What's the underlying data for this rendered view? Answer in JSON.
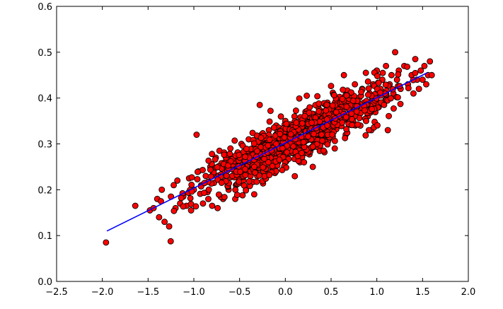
{
  "chart_data": {
    "type": "scatter",
    "title": "",
    "xlabel": "",
    "ylabel": "",
    "xlim": [
      -2.5,
      2.0
    ],
    "ylim": [
      0.0,
      0.6
    ],
    "xticks": [
      "−2.5",
      "−2.0",
      "−1.5",
      "−1.0",
      "−0.5",
      "0.0",
      "0.5",
      "1.0",
      "1.5",
      "2.0"
    ],
    "xtick_values": [
      -2.5,
      -2.0,
      -1.5,
      -1.0,
      -0.5,
      0.0,
      0.5,
      1.0,
      1.5,
      2.0
    ],
    "yticks": [
      "0.0",
      "0.1",
      "0.2",
      "0.3",
      "0.4",
      "0.5",
      "0.6"
    ],
    "ytick_values": [
      0.0,
      0.1,
      0.2,
      0.3,
      0.4,
      0.5,
      0.6
    ],
    "grid": false,
    "colors": {
      "points": "#ff0000",
      "point_edge": "#000000",
      "fit_line": "#0000ff"
    },
    "fit_line": {
      "x": [
        -1.95,
        1.55
      ],
      "y": [
        0.11,
        0.455
      ]
    },
    "series": [
      {
        "points": [
          [
            -1.96,
            0.085
          ],
          [
            -1.64,
            0.165
          ],
          [
            -1.48,
            0.155
          ],
          [
            -1.44,
            0.16
          ],
          [
            -1.4,
            0.18
          ],
          [
            -1.38,
            0.14
          ],
          [
            -1.36,
            0.175
          ],
          [
            -1.35,
            0.2
          ],
          [
            -1.32,
            0.13
          ],
          [
            -1.27,
            0.12
          ],
          [
            -1.25,
            0.185
          ],
          [
            -1.22,
            0.21
          ],
          [
            -1.2,
            0.16
          ],
          [
            -1.18,
            0.22
          ],
          [
            -1.15,
            0.17
          ],
          [
            -1.12,
            0.19
          ],
          [
            -1.08,
            0.165
          ],
          [
            -1.03,
            0.155
          ],
          [
            -1.0,
            0.2
          ],
          [
            -0.97,
            0.32
          ],
          [
            -0.95,
            0.24
          ],
          [
            -0.92,
            0.21
          ],
          [
            -0.9,
            0.17
          ],
          [
            -0.87,
            0.23
          ],
          [
            -0.85,
            0.195
          ],
          [
            -0.82,
            0.25
          ],
          [
            -0.8,
            0.165
          ],
          [
            -0.78,
            0.215
          ],
          [
            -0.76,
            0.27
          ],
          [
            -0.74,
            0.16
          ],
          [
            -0.72,
            0.285
          ],
          [
            -0.7,
            0.22
          ],
          [
            -0.68,
            0.18
          ],
          [
            -0.66,
            0.24
          ],
          [
            -0.64,
            0.26
          ],
          [
            -0.62,
            0.2
          ],
          [
            -0.6,
            0.29
          ],
          [
            -0.58,
            0.23
          ],
          [
            -0.56,
            0.25
          ],
          [
            -0.54,
            0.21
          ],
          [
            -0.52,
            0.28
          ],
          [
            -0.5,
            0.24
          ],
          [
            -0.48,
            0.3
          ],
          [
            -0.46,
            0.22
          ],
          [
            -0.44,
            0.26
          ],
          [
            -0.42,
            0.27
          ],
          [
            -0.4,
            0.31
          ],
          [
            -0.38,
            0.23
          ],
          [
            -0.36,
            0.29
          ],
          [
            -0.34,
            0.19
          ],
          [
            -0.32,
            0.28
          ],
          [
            -0.3,
            0.26
          ],
          [
            -0.28,
            0.385
          ],
          [
            -0.26,
            0.32
          ],
          [
            -0.24,
            0.24
          ],
          [
            -0.22,
            0.3
          ],
          [
            -0.2,
            0.27
          ],
          [
            -0.18,
            0.33
          ],
          [
            -0.16,
            0.25
          ],
          [
            -0.14,
            0.31
          ],
          [
            -0.12,
            0.28
          ],
          [
            -0.1,
            0.34
          ],
          [
            -0.08,
            0.26
          ],
          [
            -0.06,
            0.3
          ],
          [
            -0.04,
            0.32
          ],
          [
            -0.02,
            0.27
          ],
          [
            0.0,
            0.35
          ],
          [
            0.02,
            0.29
          ],
          [
            0.04,
            0.31
          ],
          [
            0.06,
            0.33
          ],
          [
            0.08,
            0.28
          ],
          [
            0.1,
            0.36
          ],
          [
            0.12,
            0.3
          ],
          [
            0.14,
            0.32
          ],
          [
            0.16,
            0.26
          ],
          [
            0.18,
            0.34
          ],
          [
            0.2,
            0.31
          ],
          [
            0.22,
            0.37
          ],
          [
            0.24,
            0.29
          ],
          [
            0.26,
            0.33
          ],
          [
            0.28,
            0.35
          ],
          [
            0.3,
            0.25
          ],
          [
            0.32,
            0.36
          ],
          [
            0.34,
            0.32
          ],
          [
            0.36,
            0.38
          ],
          [
            0.38,
            0.3
          ],
          [
            0.4,
            0.34
          ],
          [
            0.42,
            0.36
          ],
          [
            0.44,
            0.31
          ],
          [
            0.46,
            0.39
          ],
          [
            0.48,
            0.33
          ],
          [
            0.5,
            0.37
          ],
          [
            0.52,
            0.35
          ],
          [
            0.54,
            0.29
          ],
          [
            0.56,
            0.4
          ],
          [
            0.58,
            0.34
          ],
          [
            0.6,
            0.38
          ],
          [
            0.62,
            0.36
          ],
          [
            0.64,
            0.45
          ],
          [
            0.66,
            0.32
          ],
          [
            0.68,
            0.39
          ],
          [
            0.7,
            0.37
          ],
          [
            0.72,
            0.41
          ],
          [
            0.74,
            0.35
          ],
          [
            0.76,
            0.43
          ],
          [
            0.78,
            0.38
          ],
          [
            0.8,
            0.4
          ],
          [
            0.82,
            0.34
          ],
          [
            0.84,
            0.42
          ],
          [
            0.86,
            0.39
          ],
          [
            0.88,
            0.455
          ],
          [
            0.9,
            0.36
          ],
          [
            0.92,
            0.41
          ],
          [
            0.94,
            0.33
          ],
          [
            0.96,
            0.43
          ],
          [
            0.98,
            0.4
          ],
          [
            1.0,
            0.46
          ],
          [
            1.02,
            0.38
          ],
          [
            1.04,
            0.42
          ],
          [
            1.06,
            0.44
          ],
          [
            1.08,
            0.39
          ],
          [
            1.1,
            0.47
          ],
          [
            1.12,
            0.33
          ],
          [
            1.14,
            0.43
          ],
          [
            1.16,
            0.45
          ],
          [
            1.18,
            0.41
          ],
          [
            1.2,
            0.5
          ],
          [
            1.22,
            0.44
          ],
          [
            1.24,
            0.46
          ],
          [
            1.26,
            0.42
          ],
          [
            1.3,
            0.47
          ],
          [
            1.34,
            0.43
          ],
          [
            1.38,
            0.45
          ],
          [
            1.4,
            0.41
          ],
          [
            1.42,
            0.485
          ],
          [
            1.44,
            0.44
          ],
          [
            1.46,
            0.42
          ],
          [
            1.48,
            0.46
          ],
          [
            1.5,
            0.44
          ],
          [
            1.52,
            0.47
          ],
          [
            1.54,
            0.43
          ],
          [
            1.56,
            0.45
          ],
          [
            1.58,
            0.48
          ],
          [
            1.6,
            0.45
          ]
        ],
        "cloud": {
          "count": 900,
          "x_mean": 0.1,
          "x_sd": 0.5,
          "x_range": [
            -1.3,
            1.45
          ],
          "slope": 0.0986,
          "intercept": 0.302,
          "noise_sd": 0.026,
          "seed": 7
        }
      }
    ]
  }
}
